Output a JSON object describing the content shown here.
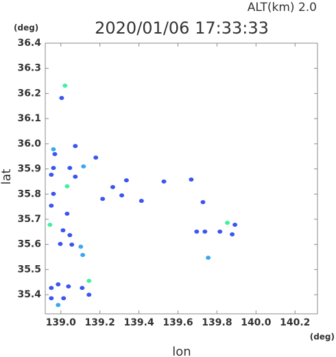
{
  "chart_data": {
    "type": "scatter",
    "title": "2020/01/06 17:33:33",
    "altitude_label": "ALT(km)  2.0",
    "y_unit": "(deg)",
    "x_unit": "(deg)",
    "x_label": "lon",
    "y_label": "lat",
    "xlim": [
      138.92,
      140.315
    ],
    "ylim": [
      35.324,
      36.4
    ],
    "xticks": [
      {
        "value": 139,
        "label": "139.0"
      },
      139.2,
      139.4,
      139.6,
      139.8,
      {
        "value": 140,
        "label": "140.0"
      },
      140.2
    ],
    "yticks": [
      35.4,
      35.5,
      35.6,
      35.7,
      35.8,
      35.9,
      {
        "value": 36,
        "label": "36.0"
      },
      36.1,
      36.2,
      36.3,
      36.4
    ],
    "series": [
      {
        "color": "#3a55f0",
        "x": [
          139.004,
          139.074,
          138.969,
          138.962,
          138.951,
          139.046,
          139.074,
          138.962,
          138.951,
          139.032,
          139.011,
          139.046,
          138.997,
          139.056,
          138.986,
          138.951,
          139.039,
          139.014,
          138.951,
          139.144,
          139.109,
          139.266,
          139.336,
          139.413,
          139.528,
          139.668,
          139.728,
          139.696,
          139.738,
          139.815,
          139.892,
          139.878,
          139.214,
          139.312,
          139.179
        ],
        "y": [
          36.182,
          35.991,
          35.959,
          35.904,
          35.877,
          35.904,
          35.869,
          35.801,
          35.754,
          35.722,
          35.656,
          35.637,
          35.602,
          35.599,
          35.441,
          35.427,
          35.433,
          35.386,
          35.386,
          35.4,
          35.427,
          35.828,
          35.855,
          35.773,
          35.85,
          35.858,
          35.768,
          35.651,
          35.651,
          35.651,
          35.678,
          35.64,
          35.781,
          35.795,
          35.945
        ]
      },
      {
        "color": "#3aa8f0",
        "x": [
          138.962,
          139.116,
          139.102,
          139.112,
          138.986,
          139.755
        ],
        "y": [
          35.978,
          35.91,
          35.591,
          35.558,
          35.359,
          35.547
        ]
      },
      {
        "color": "#40f0a0",
        "x": [
          139.021,
          139.032,
          138.944,
          139.144,
          139.853
        ],
        "y": [
          36.231,
          35.831,
          35.678,
          35.455,
          35.686
        ]
      }
    ]
  }
}
